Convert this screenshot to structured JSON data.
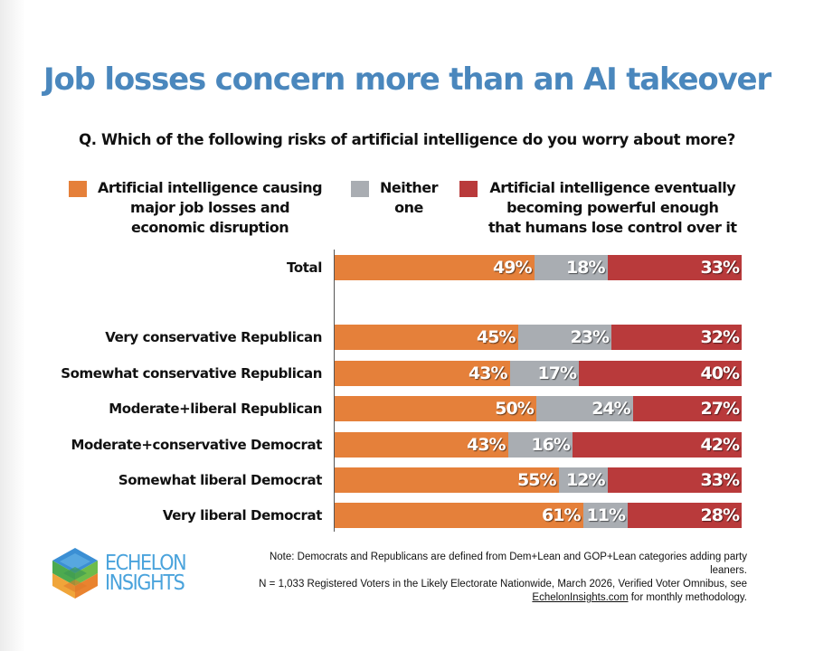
{
  "title": "Job losses concern more than an AI takeover",
  "question": "Q. Which of the following risks of artificial intelligence do you worry about more?",
  "colors": {
    "title": "#4a87bd",
    "jobs": "#e5803a",
    "neither": "#a9adb2",
    "control": "#b93a3b"
  },
  "footer": {
    "note_line1": "Note: Democrats and Republicans are defined from Dem+Lean and GOP+Lean categories adding party leaners.",
    "note_line2": "N = 1,033 Registered Voters in the Likely Electorate Nationwide, March 2026, Verified Voter Omnibus, see",
    "note_link": "EchelonInsights.com",
    "note_line3": " for monthly methodology.",
    "logo_line1": "ECHELON",
    "logo_line2": "INSIGHTS"
  },
  "chart_data": {
    "type": "bar",
    "orientation": "horizontal",
    "stacked": true,
    "title": "Job losses concern more than an AI takeover",
    "subtitle": "Q. Which of the following risks of artificial intelligence do you worry about more?",
    "xlabel": "",
    "ylabel": "",
    "xlim": [
      0,
      100
    ],
    "grid": false,
    "legend_position": "top",
    "categories": [
      "Total",
      "Very conservative Republican",
      "Somewhat conservative Republican",
      "Moderate+liberal Republican",
      "Moderate+conservative Democrat",
      "Somewhat liberal Democrat",
      "Very liberal Democrat"
    ],
    "series": [
      {
        "name": "Artificial intelligence causing\nmajor job losses and\neconomic disruption",
        "key": "jobs",
        "values": [
          49,
          45,
          43,
          50,
          43,
          55,
          61
        ]
      },
      {
        "name": "Neither\none",
        "key": "neither",
        "values": [
          18,
          23,
          17,
          24,
          16,
          12,
          11
        ]
      },
      {
        "name": "Artificial intelligence eventually\nbecoming powerful enough\nthat humans lose control over it",
        "key": "control",
        "values": [
          33,
          32,
          40,
          27,
          42,
          33,
          28
        ]
      }
    ]
  }
}
